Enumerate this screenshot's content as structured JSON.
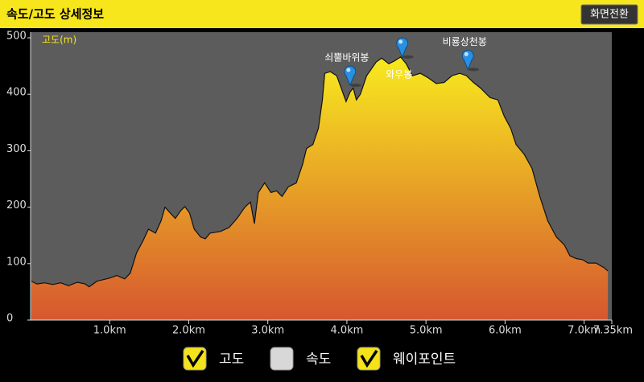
{
  "header": {
    "title": "속도/고도 상세정보",
    "button": "화면전환"
  },
  "chart_data": {
    "type": "area",
    "y_label": "고도(m)",
    "x": [
      0.01,
      0.08,
      0.18,
      0.28,
      0.38,
      0.48,
      0.59,
      0.69,
      0.74,
      0.84,
      0.99,
      1.09,
      1.19,
      1.26,
      1.34,
      1.42,
      1.49,
      1.58,
      1.65,
      1.7,
      1.77,
      1.83,
      1.9,
      1.95,
      2.01,
      2.07,
      2.15,
      2.21,
      2.27,
      2.4,
      2.51,
      2.61,
      2.71,
      2.78,
      2.83,
      2.88,
      2.96,
      3.04,
      3.11,
      3.18,
      3.26,
      3.36,
      3.44,
      3.49,
      3.57,
      3.64,
      3.69,
      3.72,
      3.79,
      3.87,
      3.92,
      3.99,
      4.04,
      4.08,
      4.12,
      4.17,
      4.25,
      4.37,
      4.44,
      4.53,
      4.6,
      4.68,
      4.75,
      4.83,
      4.93,
      5.03,
      5.13,
      5.23,
      5.33,
      5.43,
      5.51,
      5.6,
      5.69,
      5.81,
      5.91,
      5.99,
      6.07,
      6.14,
      6.24,
      6.34,
      6.44,
      6.54,
      6.65,
      6.75,
      6.82,
      6.9,
      6.98,
      7.05,
      7.15,
      7.25,
      7.3
    ],
    "values": [
      69,
      64,
      66,
      63,
      66,
      61,
      67,
      64,
      59,
      69,
      74,
      79,
      73,
      83,
      119,
      140,
      161,
      154,
      176,
      200,
      189,
      180,
      194,
      201,
      190,
      161,
      147,
      144,
      154,
      157,
      164,
      180,
      200,
      209,
      171,
      226,
      243,
      226,
      229,
      219,
      236,
      243,
      276,
      304,
      311,
      340,
      390,
      437,
      440,
      433,
      414,
      387,
      404,
      411,
      390,
      400,
      433,
      457,
      464,
      454,
      459,
      466,
      454,
      433,
      437,
      429,
      419,
      421,
      433,
      437,
      433,
      421,
      411,
      394,
      390,
      361,
      340,
      311,
      294,
      269,
      219,
      176,
      147,
      133,
      114,
      109,
      107,
      101,
      101,
      93,
      87
    ],
    "gradient": [
      "#f8ea1e",
      "#d6572f"
    ],
    "line_color": "#111111",
    "xlim": [
      0,
      7.35
    ],
    "ylim": [
      0,
      510
    ],
    "xticks": [
      {
        "value": 1,
        "label": "1.0km"
      },
      {
        "value": 2,
        "label": "2.0km"
      },
      {
        "value": 3,
        "label": "3.0km"
      },
      {
        "value": 4,
        "label": "4.0km"
      },
      {
        "value": 5,
        "label": "5.0km"
      },
      {
        "value": 6,
        "label": "6.0km"
      },
      {
        "value": 7,
        "label": "7.0km"
      },
      {
        "value": 7.35,
        "label": "7.35km"
      }
    ],
    "yticks": [
      0,
      100,
      200,
      300,
      400,
      500
    ],
    "waypoints": [
      {
        "name": "쇠뿔바위봉",
        "x": 4.04,
        "y": 416
      },
      {
        "name": "와우봉",
        "x": 4.7,
        "y": 466
      },
      {
        "name": "비룡상천봉",
        "x": 5.53,
        "y": 444
      }
    ]
  },
  "checkboxes": [
    {
      "label": "고도",
      "checked": true
    },
    {
      "label": "속도",
      "checked": false
    },
    {
      "label": "웨이포인트",
      "checked": true
    }
  ]
}
